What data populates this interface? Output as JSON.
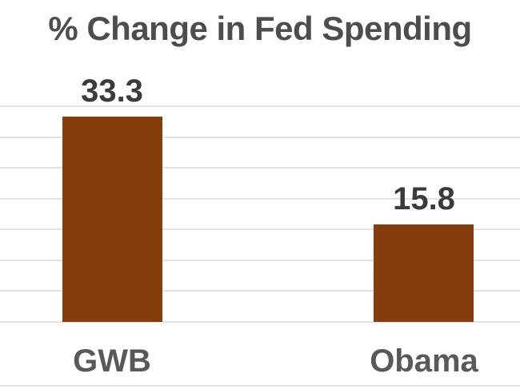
{
  "chart_data": {
    "type": "bar",
    "title": "% Change in Fed Spending",
    "categories": [
      "GWB",
      "Obama"
    ],
    "values": [
      33.3,
      15.8
    ],
    "data_labels": [
      "33.3",
      "15.8"
    ],
    "xlabel": "",
    "ylabel": "",
    "ylim": [
      0,
      35
    ],
    "gridline_step": 5,
    "grid": "horizontal",
    "legend_position": "none",
    "y_axis_tick_labels_visible": false,
    "data_labels_position": "above-bar",
    "colors": {
      "bar": "#853D0D",
      "title": "#4D4D4D",
      "data_label": "#3B3B3B",
      "category_label": "#595959",
      "gridline": "#E2E2E2",
      "background": "#FFFFFF"
    }
  }
}
